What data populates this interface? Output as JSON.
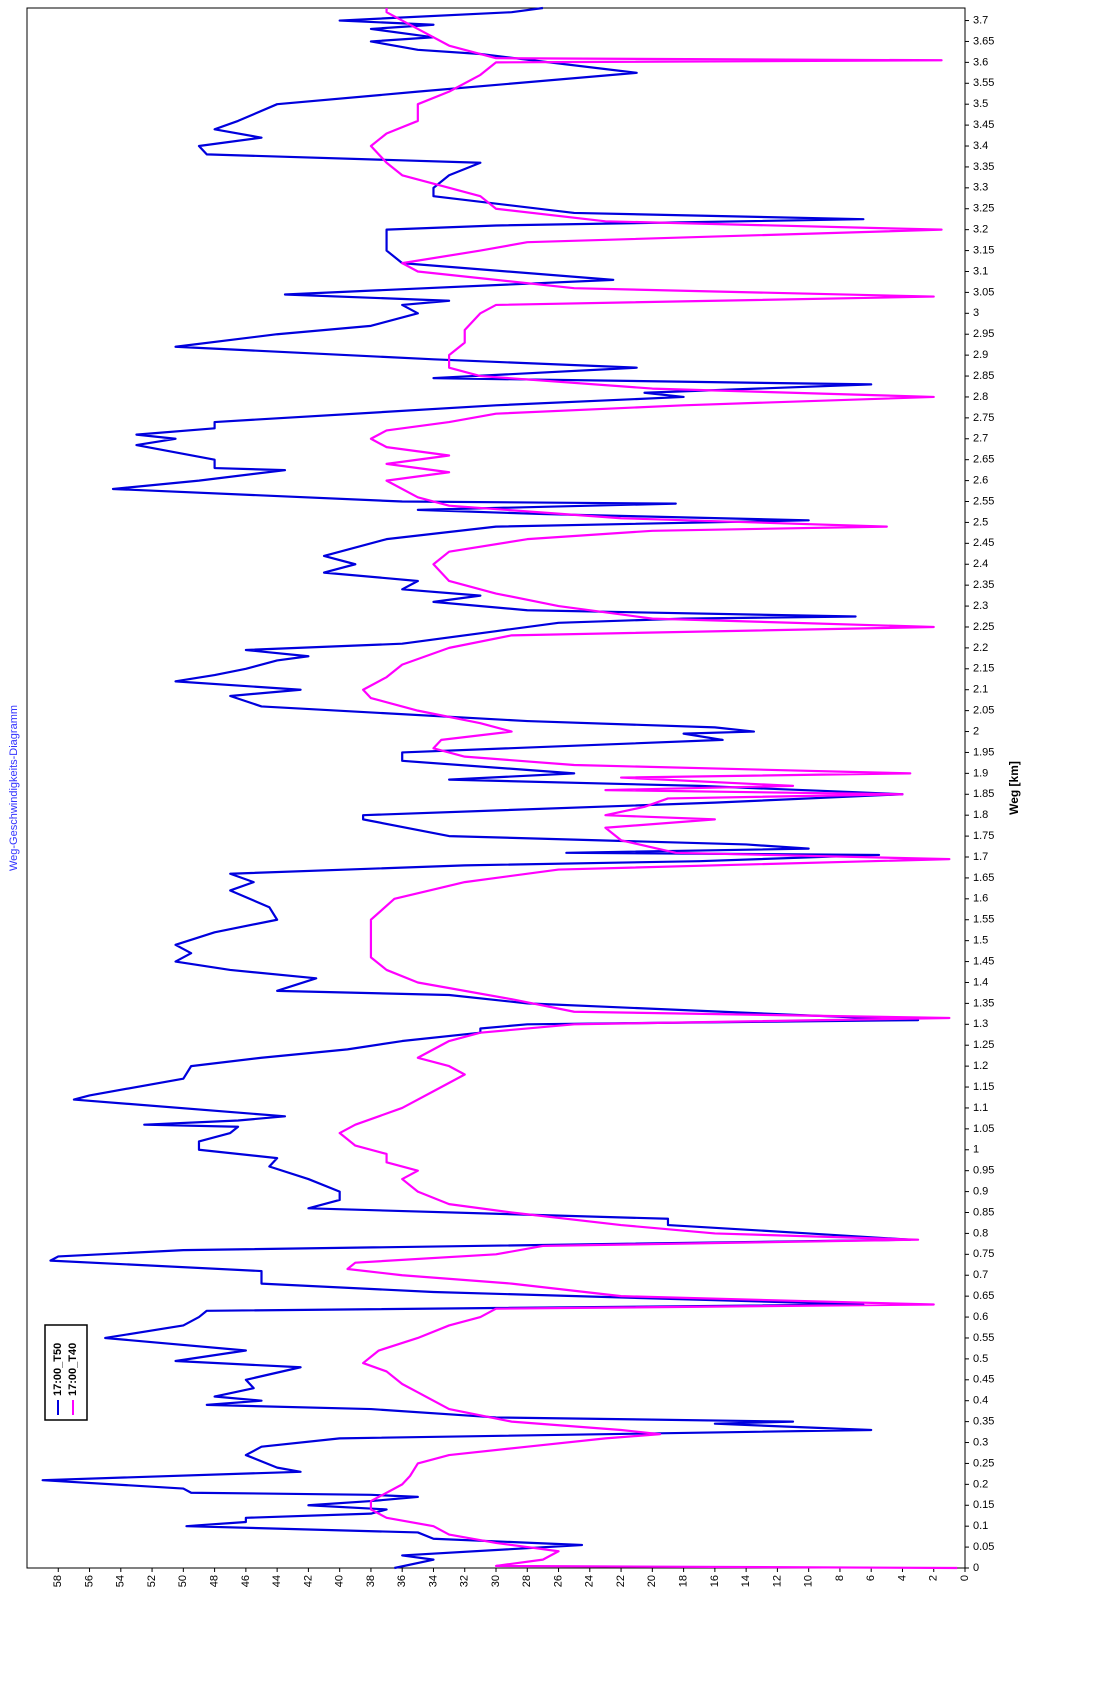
{
  "chart_data": {
    "type": "line",
    "title": "Weg-Geschwindigkeits-Diagramm",
    "x_label": "Weg [km]",
    "xlim": [
      0,
      3.73
    ],
    "ylim": [
      0,
      60
    ],
    "xticks": [
      0,
      0.05,
      0.1,
      0.15,
      0.2,
      0.25,
      0.3,
      0.35,
      0.4,
      0.45,
      0.5,
      0.55,
      0.6,
      0.65,
      0.7,
      0.75,
      0.8,
      0.85,
      0.9,
      0.95,
      1,
      1.05,
      1.1,
      1.15,
      1.2,
      1.25,
      1.3,
      1.35,
      1.4,
      1.45,
      1.5,
      1.55,
      1.6,
      1.65,
      1.7,
      1.75,
      1.8,
      1.85,
      1.9,
      1.95,
      2,
      2.05,
      2.1,
      2.15,
      2.2,
      2.25,
      2.3,
      2.35,
      2.4,
      2.45,
      2.5,
      2.55,
      2.6,
      2.65,
      2.7,
      2.75,
      2.8,
      2.85,
      2.9,
      2.95,
      3,
      3.05,
      3.1,
      3.15,
      3.2,
      3.25,
      3.3,
      3.35,
      3.4,
      3.45,
      3.5,
      3.55,
      3.6,
      3.65,
      3.7
    ],
    "yticks": [
      0,
      2,
      4,
      6,
      8,
      10,
      12,
      14,
      16,
      18,
      20,
      22,
      24,
      26,
      28,
      30,
      32,
      34,
      36,
      38,
      40,
      42,
      44,
      46,
      48,
      50,
      52,
      54,
      56,
      58
    ],
    "grid": true,
    "legend": "upper left",
    "series": [
      {
        "name": "17:00_T50",
        "color": "#0000dd",
        "x": [
          0,
          0.02,
          0.03,
          0.055,
          0.07,
          0.085,
          0.1,
          0.11,
          0.12,
          0.13,
          0.14,
          0.15,
          0.16,
          0.17,
          0.175,
          0.18,
          0.19,
          0.21,
          0.23,
          0.24,
          0.27,
          0.29,
          0.31,
          0.33,
          0.345,
          0.35,
          0.36,
          0.38,
          0.39,
          0.4,
          0.41,
          0.43,
          0.45,
          0.48,
          0.495,
          0.52,
          0.55,
          0.58,
          0.6,
          0.615,
          0.63,
          0.66,
          0.68,
          0.71,
          0.735,
          0.745,
          0.76,
          0.785,
          0.8,
          0.82,
          0.835,
          0.86,
          0.88,
          0.9,
          0.93,
          0.96,
          0.98,
          1.0,
          1.02,
          1.04,
          1.055,
          1.06,
          1.07,
          1.08,
          1.12,
          1.13,
          1.17,
          1.2,
          1.22,
          1.24,
          1.26,
          1.28,
          1.29,
          1.3,
          1.31,
          1.35,
          1.37,
          1.38,
          1.41,
          1.43,
          1.45,
          1.47,
          1.49,
          1.52,
          1.55,
          1.58,
          1.62,
          1.64,
          1.66,
          1.68,
          1.69,
          1.705,
          1.71,
          1.72,
          1.73,
          1.75,
          1.79,
          1.8,
          1.83,
          1.85,
          1.855,
          1.87,
          1.885,
          1.9,
          1.93,
          1.95,
          1.98,
          1.995,
          2.0,
          2.01,
          2.025,
          2.06,
          2.085,
          2.1,
          2.12,
          2.135,
          2.15,
          2.17,
          2.18,
          2.195,
          2.21,
          2.24,
          2.26,
          2.27,
          2.275,
          2.29,
          2.31,
          2.325,
          2.34,
          2.36,
          2.38,
          2.4,
          2.42,
          2.46,
          2.49,
          2.505,
          2.52,
          2.53,
          2.545,
          2.55,
          2.58,
          2.6,
          2.625,
          2.63,
          2.65,
          2.685,
          2.7,
          2.71,
          2.725,
          2.74,
          2.78,
          2.8,
          2.81,
          2.83,
          2.845,
          2.87,
          2.89,
          2.92,
          2.95,
          2.97,
          3.0,
          3.02,
          3.03,
          3.045,
          3.08,
          3.12,
          3.15,
          3.2,
          3.21,
          3.225,
          3.24,
          3.28,
          3.3,
          3.33,
          3.36,
          3.38,
          3.4,
          3.42,
          3.44,
          3.46,
          3.5,
          3.53,
          3.575,
          3.62,
          3.63,
          3.65,
          3.66,
          3.68,
          3.69,
          3.7,
          3.72,
          3.73
        ],
        "values": [
          36.5,
          34,
          36,
          24.5,
          34,
          35,
          49.8,
          46,
          46,
          38,
          37,
          42,
          38,
          35,
          38,
          49.5,
          50,
          59,
          42.5,
          44,
          46,
          45,
          40,
          6,
          16,
          11,
          30,
          38,
          48.5,
          45,
          48,
          45.5,
          46,
          42.5,
          50.5,
          46,
          55,
          50,
          49,
          48.5,
          6.5,
          34,
          45,
          45,
          58.5,
          58,
          50,
          3.5,
          10,
          19,
          19,
          42,
          40,
          40,
          42,
          44.5,
          44,
          49,
          49,
          47,
          46.5,
          52.5,
          46.5,
          43.5,
          57,
          56,
          50,
          49.5,
          45,
          39.5,
          36,
          31,
          31,
          28,
          3,
          28,
          33,
          44,
          41.5,
          47,
          50.5,
          49.5,
          50.5,
          48,
          44,
          44.5,
          47,
          45.5,
          47,
          32,
          17,
          5.5,
          25.5,
          10,
          14,
          33,
          38.5,
          38.5,
          16,
          4,
          7,
          17,
          33,
          25,
          36,
          36,
          15.5,
          18,
          13.5,
          16,
          28,
          45,
          47,
          42.5,
          50.5,
          48,
          46,
          44,
          42,
          46,
          36,
          30,
          26,
          18,
          7,
          28,
          34,
          31,
          36,
          35,
          41,
          39,
          41,
          37,
          30,
          10,
          27,
          35,
          18.5,
          36,
          54.5,
          49,
          43.5,
          48,
          48,
          53,
          50.5,
          53,
          48,
          48,
          30,
          18,
          20.5,
          6,
          34,
          21,
          34,
          50.5,
          44,
          38,
          35,
          36,
          33,
          43.5,
          22.5,
          36,
          37,
          37,
          30,
          6.5,
          25,
          34,
          34,
          33,
          31,
          48.5,
          49,
          45,
          48,
          46.5,
          44,
          35,
          21,
          31,
          35,
          38,
          34,
          38,
          34,
          40,
          29,
          27
        ]
      },
      {
        "name": "17:00_T40",
        "color": "#ff00ff",
        "x": [
          0,
          0.005,
          0.02,
          0.04,
          0.05,
          0.06,
          0.08,
          0.1,
          0.12,
          0.14,
          0.16,
          0.2,
          0.22,
          0.25,
          0.27,
          0.29,
          0.31,
          0.32,
          0.33,
          0.35,
          0.38,
          0.42,
          0.44,
          0.47,
          0.49,
          0.52,
          0.55,
          0.58,
          0.6,
          0.62,
          0.63,
          0.65,
          0.68,
          0.7,
          0.715,
          0.73,
          0.75,
          0.77,
          0.785,
          0.8,
          0.82,
          0.85,
          0.87,
          0.9,
          0.93,
          0.95,
          0.97,
          0.99,
          1.01,
          1.04,
          1.06,
          1.1,
          1.14,
          1.18,
          1.2,
          1.22,
          1.24,
          1.26,
          1.28,
          1.3,
          1.315,
          1.33,
          1.36,
          1.4,
          1.43,
          1.46,
          1.5,
          1.55,
          1.6,
          1.64,
          1.67,
          1.695,
          1.71,
          1.74,
          1.77,
          1.79,
          1.8,
          1.82,
          1.84,
          1.85,
          1.86,
          1.87,
          1.89,
          1.9,
          1.92,
          1.94,
          1.96,
          1.98,
          2.0,
          2.02,
          2.05,
          2.08,
          2.1,
          2.13,
          2.16,
          2.2,
          2.23,
          2.25,
          2.27,
          2.3,
          2.33,
          2.36,
          2.4,
          2.43,
          2.46,
          2.48,
          2.49,
          2.51,
          2.54,
          2.56,
          2.6,
          2.62,
          2.64,
          2.66,
          2.68,
          2.7,
          2.72,
          2.74,
          2.76,
          2.78,
          2.8,
          2.82,
          2.85,
          2.87,
          2.9,
          2.93,
          2.96,
          3.0,
          3.02,
          3.04,
          3.06,
          3.1,
          3.12,
          3.15,
          3.17,
          3.2,
          3.22,
          3.25,
          3.28,
          3.3,
          3.33,
          3.36,
          3.4,
          3.43,
          3.46,
          3.5,
          3.53,
          3.57,
          3.6,
          3.605,
          3.61,
          3.64,
          3.68,
          3.72,
          3.73
        ],
        "values": [
          0.5,
          30,
          27,
          26,
          28,
          30,
          33,
          34,
          37,
          38,
          38,
          36,
          35.5,
          35,
          33,
          28,
          23,
          19.5,
          22,
          29,
          33,
          35,
          36,
          37,
          38.5,
          37.5,
          35,
          33,
          31,
          30,
          2,
          22,
          29,
          36,
          39.5,
          39,
          30,
          27,
          3,
          16,
          22,
          29,
          33,
          35,
          36,
          35,
          37,
          37,
          39,
          40,
          39,
          36,
          34,
          32,
          33,
          35,
          34,
          33,
          31,
          25,
          1,
          25,
          29,
          35,
          37,
          38,
          38,
          38,
          36.5,
          32,
          26,
          1,
          18.5,
          22,
          23,
          16,
          23,
          20.5,
          19,
          4,
          23,
          11,
          22,
          3.5,
          25,
          32,
          34,
          33.5,
          29,
          31,
          35,
          38,
          38.5,
          37,
          36,
          33,
          29,
          2,
          20,
          26,
          30,
          33,
          34,
          33,
          28,
          20,
          5,
          22,
          33,
          35,
          37,
          33,
          37,
          33,
          37,
          38,
          37,
          33,
          30,
          18,
          2,
          20,
          31,
          33,
          33,
          32,
          32,
          31,
          30,
          2,
          25,
          35,
          36,
          31,
          28,
          1.5,
          23,
          30,
          31,
          33,
          36,
          37,
          38,
          37,
          35,
          35,
          33,
          31,
          30,
          1.5,
          30,
          33,
          35,
          37,
          37
        ]
      }
    ]
  }
}
